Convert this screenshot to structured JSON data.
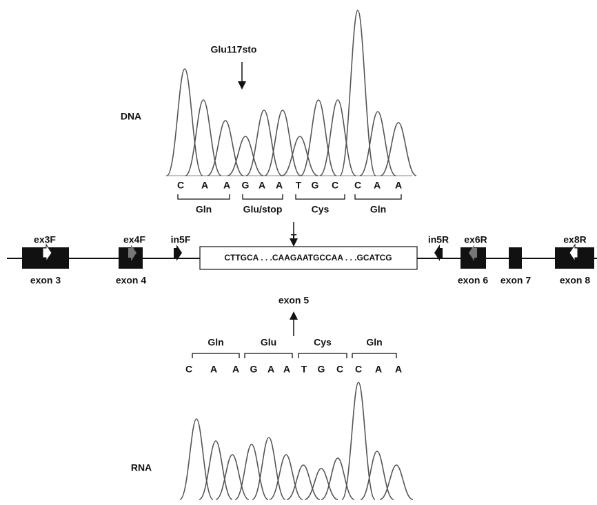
{
  "dna": {
    "label": "DNA",
    "mutation": "Glu117sto",
    "bases": [
      "C",
      "A",
      "A",
      "G",
      "A",
      "A",
      "T",
      "G",
      "C",
      "C",
      "A",
      "A"
    ],
    "codons": [
      "Gln",
      "Glu/stop",
      "Cys",
      "Gln"
    ]
  },
  "gene": {
    "primers": [
      "ex3F",
      "ex4F",
      "in5F",
      "in5R",
      "ex6R",
      "ex8R"
    ],
    "exons": [
      "exon 3",
      "exon 4",
      "exon 5",
      "exon 6",
      "exon 7",
      "exon 8"
    ],
    "sequence": "CTTGCA . . .CAAGAATGCCAA . . .GCATCG",
    "substitution": "T"
  },
  "rna": {
    "label": "RNA",
    "bases": [
      "C",
      "A",
      "A",
      "G",
      "A",
      "A",
      "T",
      "G",
      "C",
      "C",
      "A",
      "A"
    ],
    "codons": [
      "Gln",
      "Glu",
      "Cys",
      "Gln"
    ]
  }
}
